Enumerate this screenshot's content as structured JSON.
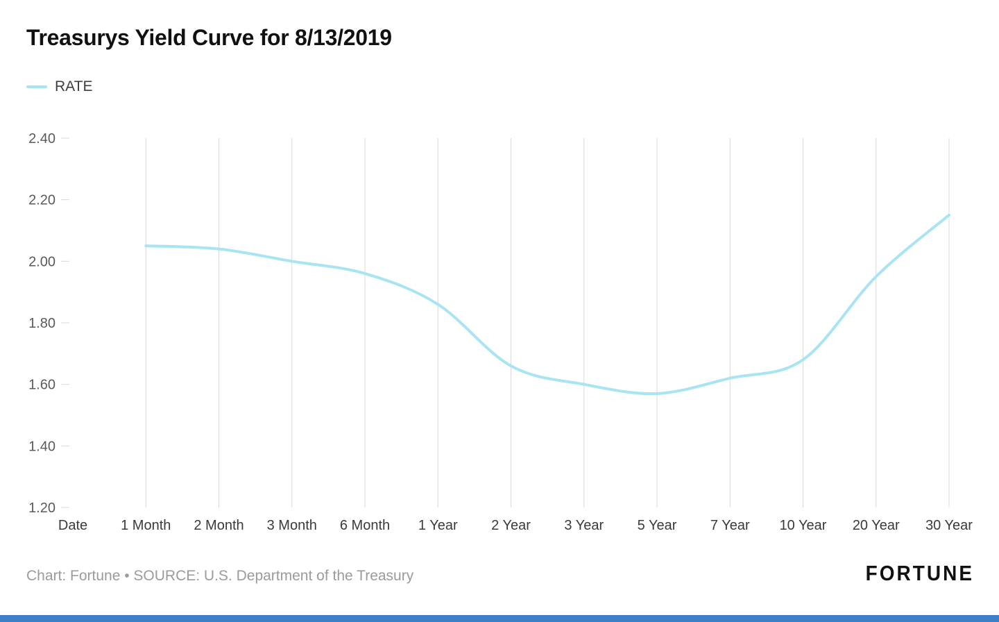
{
  "title": "Treasurys Yield Curve for 8/13/2019",
  "legend": {
    "label": "RATE"
  },
  "footer": {
    "credit": "Chart: Fortune • SOURCE: U.S. Department of the Treasury",
    "brand": "FORTUNE"
  },
  "colors": {
    "line": "#a8e4f2",
    "grid": "#d9d9d9",
    "x_label_text": "#3a3a3a",
    "y_label_text": "#5a5a5a",
    "footer_text": "#9b9b9b",
    "bottom_bar": "#3d7fc9"
  },
  "chart_data": {
    "type": "line",
    "title": "Treasurys Yield Curve for 8/13/2019",
    "categories": [
      "Date",
      "1 Month",
      "2 Month",
      "3 Month",
      "6 Month",
      "1 Year",
      "2 Year",
      "3 Year",
      "5 Year",
      "7 Year",
      "10 Year",
      "20 Year",
      "30 Year"
    ],
    "series": [
      {
        "name": "RATE",
        "values": [
          null,
          2.05,
          2.04,
          2.0,
          1.96,
          1.86,
          1.66,
          1.6,
          1.57,
          1.62,
          1.68,
          1.95,
          2.15
        ]
      }
    ],
    "ylim": [
      1.2,
      2.4
    ],
    "yticks": [
      2.4,
      2.2,
      2.0,
      1.8,
      1.6,
      1.4,
      1.2
    ],
    "ytick_format": "0.00",
    "grid": "vertical-only",
    "legend_position": "top-left",
    "source": "U.S. Department of the Treasury"
  }
}
